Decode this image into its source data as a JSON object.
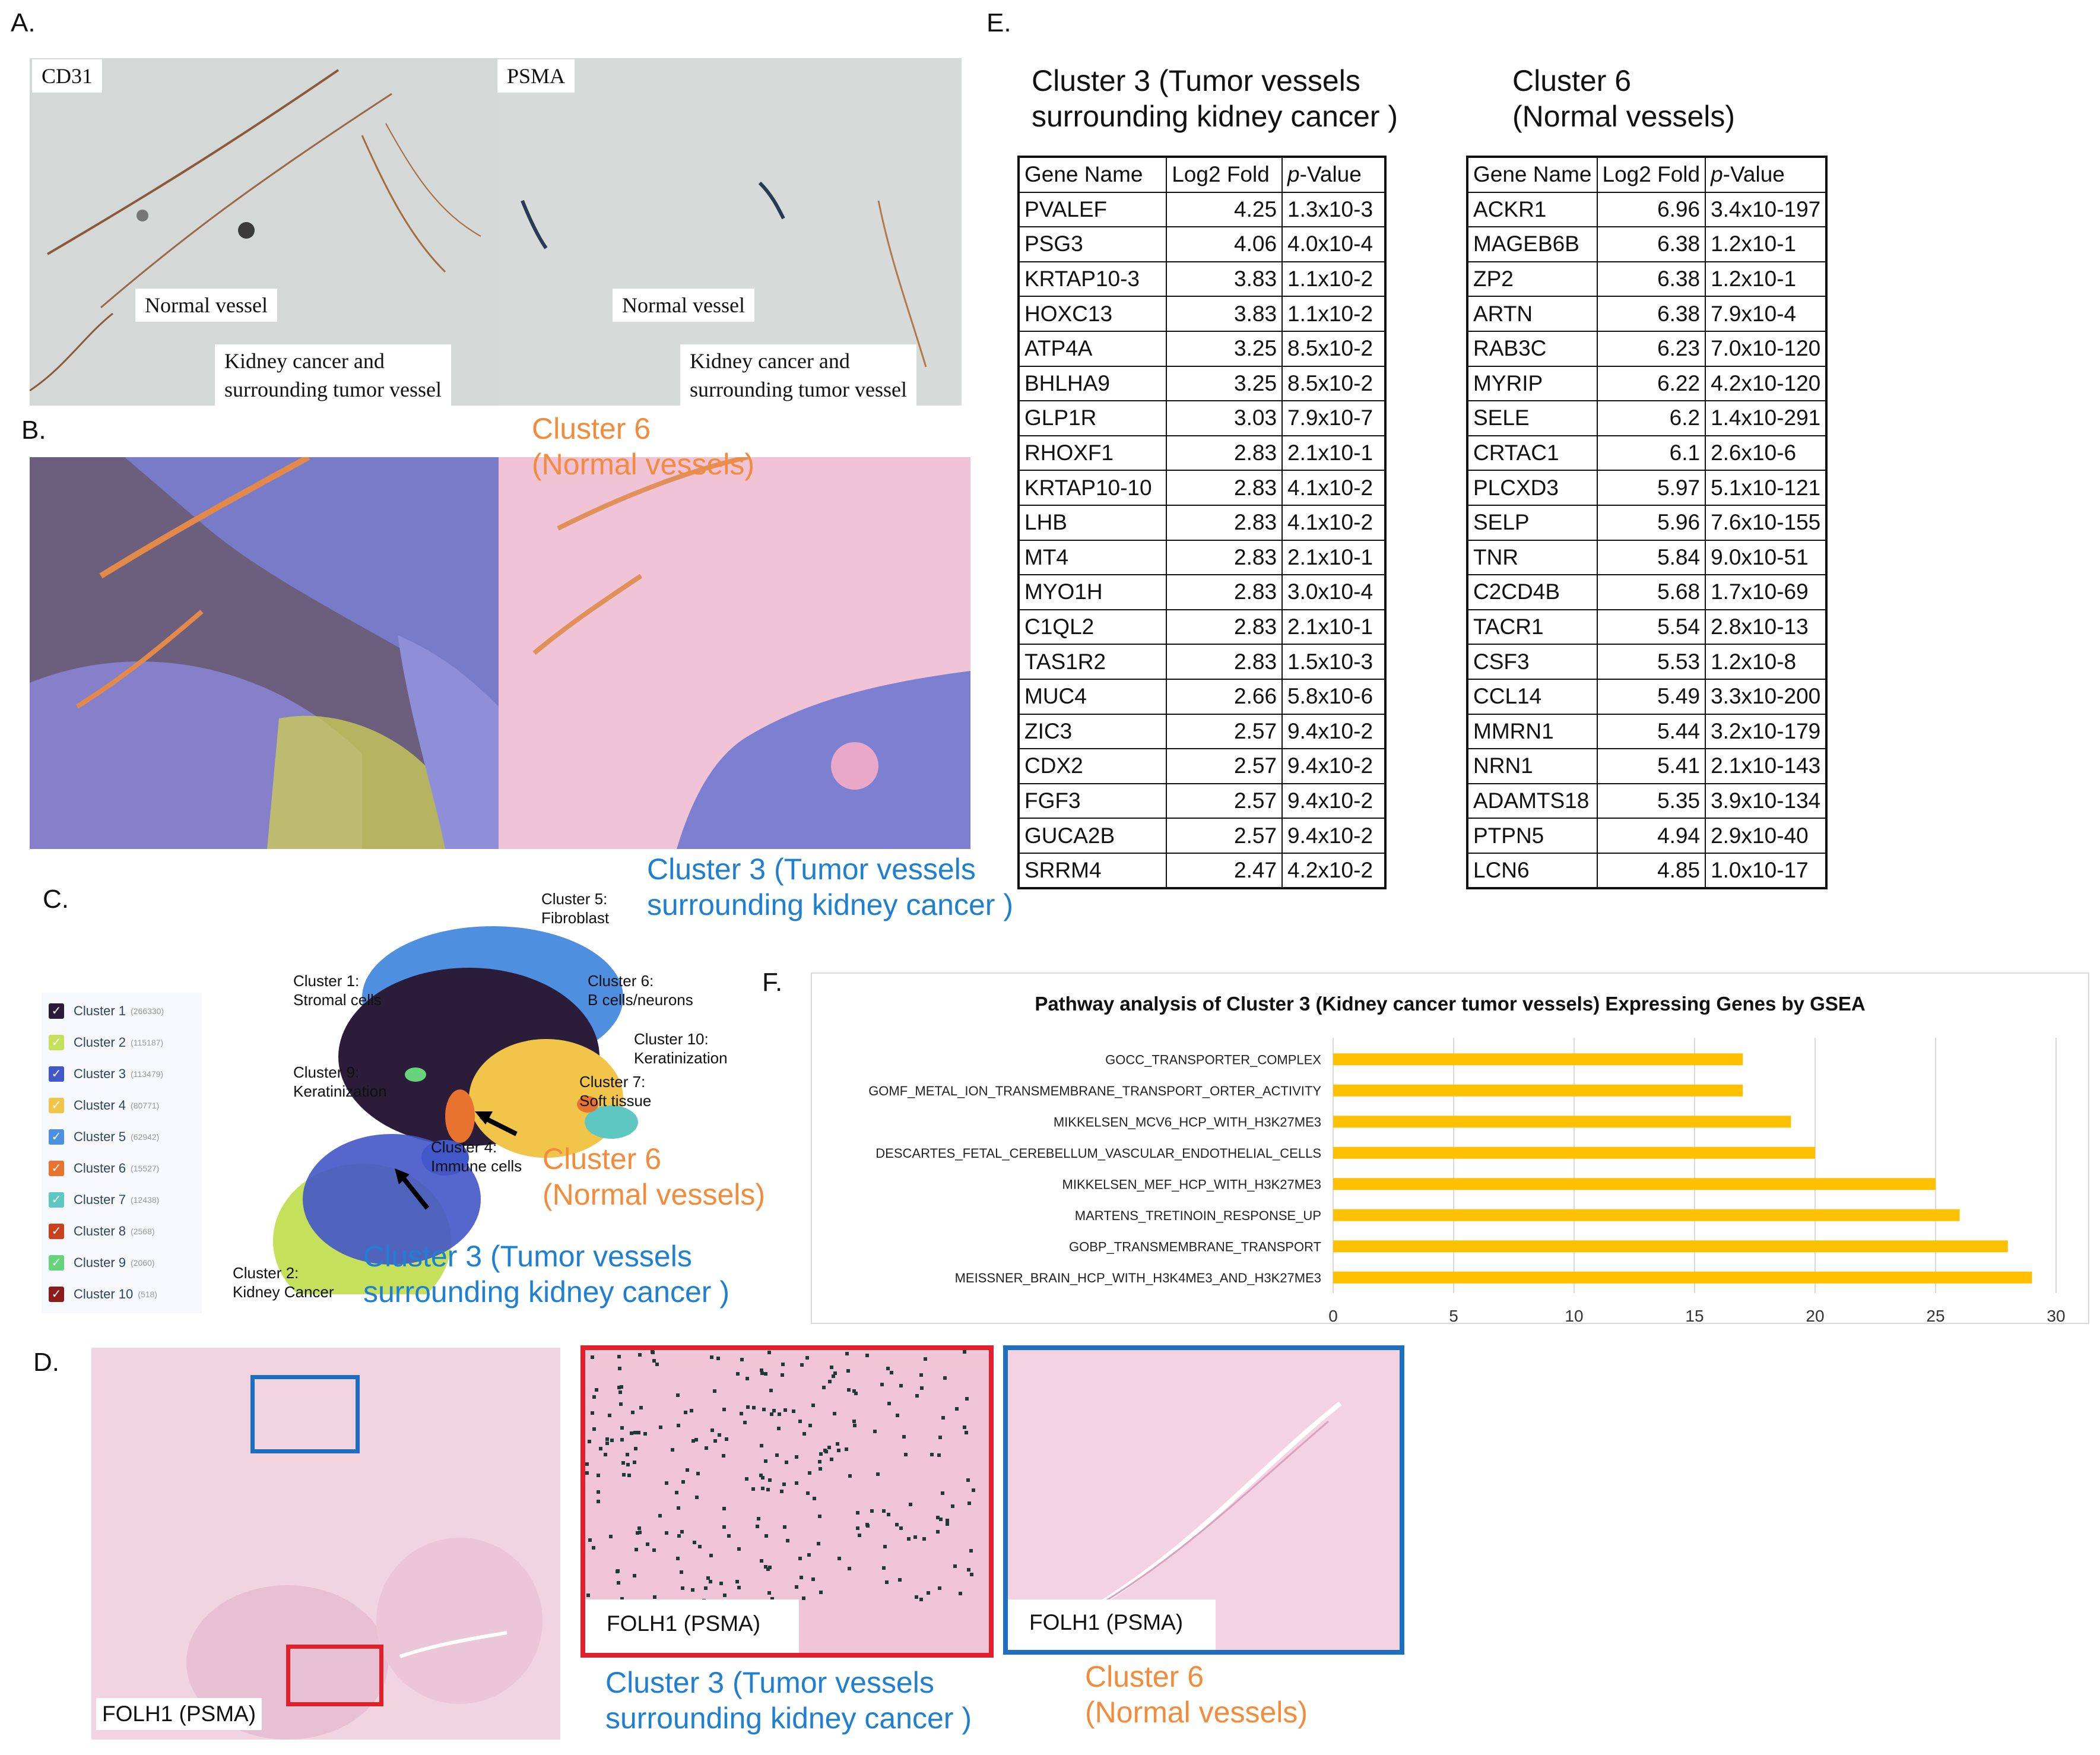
{
  "panels": {
    "a": "A.",
    "b": "B.",
    "c": "C.",
    "d": "D.",
    "e": "E.",
    "f": "F."
  },
  "panel_a": {
    "left_stain": "CD31",
    "right_stain": "PSMA",
    "normal_vessel": "Normal vessel",
    "tumor_line1": "Kidney cancer and",
    "tumor_line2": "surrounding tumor vessel"
  },
  "panel_b": {
    "c6_line1": "Cluster 6",
    "c6_line2": "(Normal vessels)",
    "c3_line1": "Cluster 3 (Tumor vessels",
    "c3_line2": "surrounding kidney cancer )"
  },
  "panel_c": {
    "legend": [
      {
        "label": "Cluster 1",
        "count": "(266330)",
        "color": "#2b1d3a"
      },
      {
        "label": "Cluster 2",
        "count": "(115187)",
        "color": "#c5e05a"
      },
      {
        "label": "Cluster 3",
        "count": "(113479)",
        "color": "#4257c8"
      },
      {
        "label": "Cluster 4",
        "count": "(80771)",
        "color": "#f0c54a"
      },
      {
        "label": "Cluster 5",
        "count": "(62942)",
        "color": "#4f8fe0"
      },
      {
        "label": "Cluster 6",
        "count": "(15527)",
        "color": "#e8732f"
      },
      {
        "label": "Cluster 7",
        "count": "(12438)",
        "color": "#5ec7c2"
      },
      {
        "label": "Cluster 8",
        "count": "(2568)",
        "color": "#c8421f"
      },
      {
        "label": "Cluster 9",
        "count": "(2060)",
        "color": "#67d37a"
      },
      {
        "label": "Cluster 10",
        "count": "(518)",
        "color": "#8a1c1c"
      }
    ],
    "umap_labels": {
      "c5_1": "Cluster 5:",
      "c5_2": "Fibroblast",
      "c1_1": "Cluster 1:",
      "c1_2": "Stromal cells",
      "c6_1": "Cluster 6:",
      "c6_2": "B cells/neurons",
      "c10_1": "Cluster 10:",
      "c10_2": "Keratinization",
      "c9_1": "Cluster 9:",
      "c9_2": "Keratinization",
      "c7_1": "Cluster 7:",
      "c7_2": "Soft tissue",
      "c4_1": "Cluster 4:",
      "c4_2": "Immune cells",
      "c2_1": "Cluster 2:",
      "c2_2": "Kidney Cancer"
    },
    "c6_line1": "Cluster 6",
    "c6_line2": "(Normal vessels)",
    "c3_line1": "Cluster 3 (Tumor vessels",
    "c3_line2": "surrounding kidney cancer )"
  },
  "panel_d": {
    "label": "FOLH1 (PSMA)",
    "c3_line1": "Cluster 3 (Tumor vessels",
    "c3_line2": "surrounding kidney cancer )",
    "c6_line1": "Cluster 6",
    "c6_line2": "(Normal vessels)"
  },
  "panel_e": {
    "t3_title1": "Cluster 3 (Tumor vessels",
    "t3_title2": "surrounding kidney cancer )",
    "t6_title1": "Cluster 6",
    "t6_title2": "(Normal vessels)",
    "headers": [
      "Gene Name",
      "Log2 Fold",
      "-Value"
    ],
    "p_italic": "p",
    "cluster3_rows": [
      [
        "PVALEF",
        "4.25",
        "1.3x10-3"
      ],
      [
        "PSG3",
        "4.06",
        "4.0x10-4"
      ],
      [
        "KRTAP10-3",
        "3.83",
        "1.1x10-2"
      ],
      [
        "HOXC13",
        "3.83",
        "1.1x10-2"
      ],
      [
        "ATP4A",
        "3.25",
        "8.5x10-2"
      ],
      [
        "BHLHA9",
        "3.25",
        "8.5x10-2"
      ],
      [
        "GLP1R",
        "3.03",
        "7.9x10-7"
      ],
      [
        "RHOXF1",
        "2.83",
        "2.1x10-1"
      ],
      [
        "KRTAP10-10",
        "2.83",
        "4.1x10-2"
      ],
      [
        "LHB",
        "2.83",
        "4.1x10-2"
      ],
      [
        "MT4",
        "2.83",
        "2.1x10-1"
      ],
      [
        "MYO1H",
        "2.83",
        "3.0x10-4"
      ],
      [
        "C1QL2",
        "2.83",
        "2.1x10-1"
      ],
      [
        "TAS1R2",
        "2.83",
        "1.5x10-3"
      ],
      [
        "MUC4",
        "2.66",
        "5.8x10-6"
      ],
      [
        "ZIC3",
        "2.57",
        "9.4x10-2"
      ],
      [
        "CDX2",
        "2.57",
        "9.4x10-2"
      ],
      [
        "FGF3",
        "2.57",
        "9.4x10-2"
      ],
      [
        "GUCA2B",
        "2.57",
        "9.4x10-2"
      ],
      [
        "SRRM4",
        "2.47",
        "4.2x10-2"
      ]
    ],
    "cluster6_rows": [
      [
        "ACKR1",
        "6.96",
        "3.4x10-197"
      ],
      [
        "MAGEB6B",
        "6.38",
        "1.2x10-1"
      ],
      [
        "ZP2",
        "6.38",
        "1.2x10-1"
      ],
      [
        "ARTN",
        "6.38",
        "7.9x10-4"
      ],
      [
        "RAB3C",
        "6.23",
        "7.0x10-120"
      ],
      [
        "MYRIP",
        "6.22",
        "4.2x10-120"
      ],
      [
        "SELE",
        "6.2",
        "1.4x10-291"
      ],
      [
        "CRTAC1",
        "6.1",
        "2.6x10-6"
      ],
      [
        "PLCXD3",
        "5.97",
        "5.1x10-121"
      ],
      [
        "SELP",
        "5.96",
        "7.6x10-155"
      ],
      [
        "TNR",
        "5.84",
        "9.0x10-51"
      ],
      [
        "C2CD4B",
        "5.68",
        "1.7x10-69"
      ],
      [
        "TACR1",
        "5.54",
        "2.8x10-13"
      ],
      [
        "CSF3",
        "5.53",
        "1.2x10-8"
      ],
      [
        "CCL14",
        "5.49",
        "3.3x10-200"
      ],
      [
        "MMRN1",
        "5.44",
        "3.2x10-179"
      ],
      [
        "NRN1",
        "5.41",
        "2.1x10-143"
      ],
      [
        "ADAMTS18",
        "5.35",
        "3.9x10-134"
      ],
      [
        "PTPN5",
        "4.94",
        "2.9x10-40"
      ],
      [
        "LCN6",
        "4.85",
        "1.0x10-17"
      ]
    ]
  },
  "chart_data": {
    "type": "bar",
    "orientation": "horizontal",
    "title": "Pathway analysis of Cluster 3 (Kidney cancer tumor vessels) Expressing Genes by GSEA",
    "categories": [
      "GOCC_TRANSPORTER_COMPLEX",
      "GOMF_METAL_ION_TRANSMEMBRANE_TRANSPORT_ORTER_ACTIVITY",
      "MIKKELSEN_MCV6_HCP_WITH_H3K27ME3",
      "DESCARTES_FETAL_CEREBELLUM_VASCULAR_ENDOTHELIAL_CELLS",
      "MIKKELSEN_MEF_HCP_WITH_H3K27ME3",
      "MARTENS_TRETINOIN_RESPONSE_UP",
      "GOBP_TRANSMEMBRANE_TRANSPORT",
      "MEISSNER_BRAIN_HCP_WITH_H3K4ME3_AND_H3K27ME3"
    ],
    "values": [
      17,
      17,
      19,
      20,
      25,
      26,
      28,
      29
    ],
    "xlim": [
      0,
      30
    ],
    "xticks": [
      "0",
      "5",
      "10",
      "15",
      "20",
      "25",
      "30"
    ],
    "bar_color": "#ffc000",
    "grid": true,
    "xlabel": "",
    "ylabel": ""
  }
}
